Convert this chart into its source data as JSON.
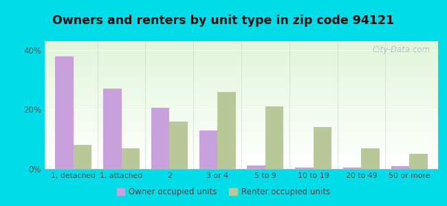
{
  "title": "Owners and renters by unit type in zip code 94121",
  "categories": [
    "1, detached",
    "1, attached",
    "2",
    "3 or 4",
    "5 to 9",
    "10 to 19",
    "20 to 49",
    "50 or more"
  ],
  "owner_values": [
    38.0,
    27.0,
    20.5,
    13.0,
    1.2,
    0.5,
    0.5,
    1.0
  ],
  "renter_values": [
    8.0,
    7.0,
    16.0,
    26.0,
    21.0,
    14.0,
    7.0,
    5.0
  ],
  "owner_color": "#c8a0dc",
  "renter_color": "#b8c898",
  "background_outer": "#00dde8",
  "title_fontsize": 12.5,
  "yticks": [
    0,
    20,
    40
  ],
  "ylim": [
    0,
    43
  ],
  "bar_width": 0.38,
  "legend_owner": "Owner occupied units",
  "legend_renter": "Renter occupied units",
  "watermark": "City-Data.com"
}
